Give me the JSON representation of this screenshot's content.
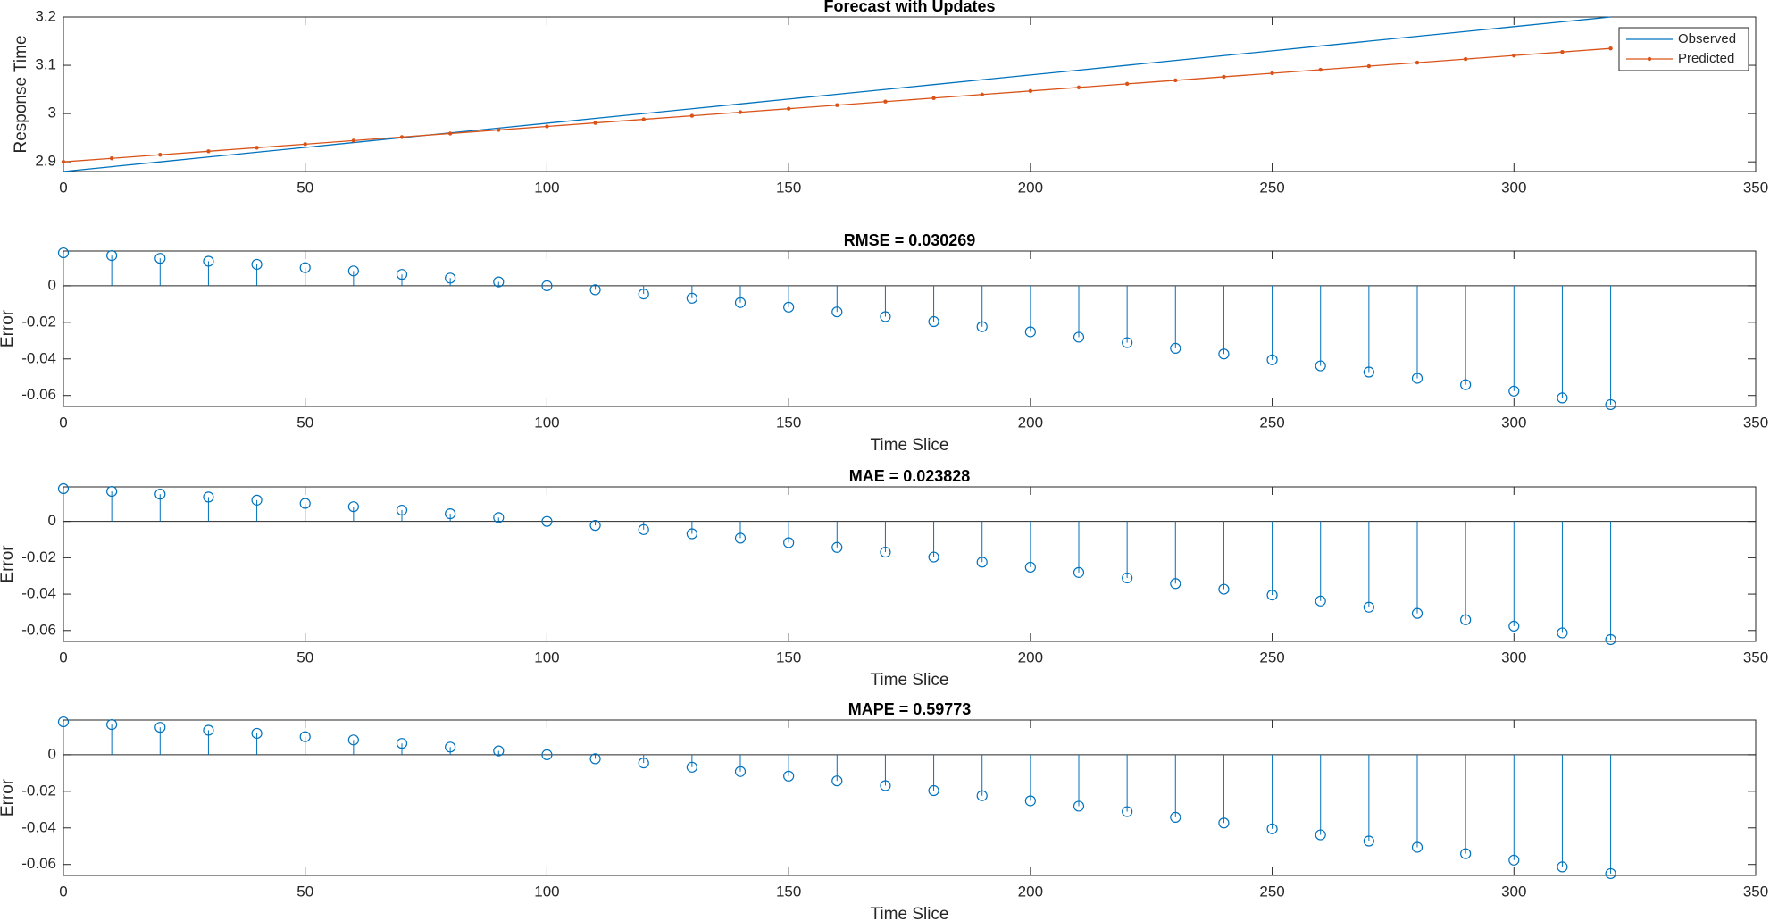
{
  "chart_data": [
    {
      "type": "line",
      "title": "Forecast with Updates",
      "ylabel": "Response Time",
      "x": [
        0,
        10,
        20,
        30,
        40,
        50,
        60,
        70,
        80,
        90,
        100,
        110,
        120,
        130,
        140,
        150,
        160,
        170,
        180,
        190,
        200,
        210,
        220,
        230,
        240,
        250,
        260,
        270,
        280,
        290,
        300,
        310,
        320
      ],
      "series": [
        {
          "name": "Observed",
          "color": "#0072bd",
          "values": [
            2.88,
            2.89,
            2.9,
            2.91,
            2.92,
            2.93,
            2.94,
            2.95,
            2.96,
            2.97,
            2.98,
            2.99,
            3.0,
            3.01,
            3.02,
            3.03,
            3.04,
            3.05,
            3.06,
            3.07,
            3.08,
            3.09,
            3.1,
            3.11,
            3.12,
            3.13,
            3.14,
            3.15,
            3.16,
            3.17,
            3.18,
            3.19,
            3.2
          ]
        },
        {
          "name": "Predicted",
          "color": "#d95319",
          "marker": "dot",
          "values": [
            2.9,
            2.9073,
            2.9147,
            2.922,
            2.9294,
            2.9367,
            2.944,
            2.9514,
            2.9587,
            2.9661,
            2.9734,
            2.9807,
            2.9881,
            2.9954,
            3.0028,
            3.0101,
            3.0174,
            3.0248,
            3.0321,
            3.0395,
            3.0468,
            3.0541,
            3.0615,
            3.0688,
            3.0762,
            3.0835,
            3.0908,
            3.0982,
            3.1055,
            3.1129,
            3.1202,
            3.1275,
            3.1349
          ]
        }
      ],
      "xlim": [
        0,
        350
      ],
      "xticks": [
        0,
        50,
        100,
        150,
        200,
        250,
        300,
        350
      ],
      "ylim": [
        2.88,
        3.2
      ],
      "yticks": [
        2.9,
        3,
        3.1,
        3.2
      ],
      "legend": "northeast"
    },
    {
      "type": "stem",
      "title": "RMSE = 0.030269",
      "ylabel": "Error",
      "xlabel": "Time Slice",
      "color": "#0072bd",
      "x": [
        0,
        10,
        20,
        30,
        40,
        50,
        60,
        70,
        80,
        90,
        100,
        110,
        120,
        130,
        140,
        150,
        160,
        170,
        180,
        190,
        200,
        210,
        220,
        230,
        240,
        250,
        260,
        270,
        280,
        290,
        300,
        310,
        320
      ],
      "values": [
        0.018,
        0.0165,
        0.015,
        0.0134,
        0.0117,
        0.0099,
        0.0081,
        0.0062,
        0.0042,
        0.0021,
        0,
        -0.0022,
        -0.0045,
        -0.0068,
        -0.0092,
        -0.0117,
        -0.0143,
        -0.0169,
        -0.0196,
        -0.0224,
        -0.0252,
        -0.0281,
        -0.0311,
        -0.0342,
        -0.0373,
        -0.0405,
        -0.0438,
        -0.0472,
        -0.0506,
        -0.0541,
        -0.0576,
        -0.0613,
        -0.065
      ],
      "xlim": [
        0,
        350
      ],
      "xticks": [
        0,
        50,
        100,
        150,
        200,
        250,
        300,
        350
      ],
      "ylim": [
        -0.066,
        0.019
      ],
      "yticks": [
        -0.06,
        -0.04,
        -0.02,
        0
      ]
    },
    {
      "type": "stem",
      "title": "MAE = 0.023828",
      "ylabel": "Error",
      "xlabel": "Time Slice",
      "color": "#0072bd",
      "x": [
        0,
        10,
        20,
        30,
        40,
        50,
        60,
        70,
        80,
        90,
        100,
        110,
        120,
        130,
        140,
        150,
        160,
        170,
        180,
        190,
        200,
        210,
        220,
        230,
        240,
        250,
        260,
        270,
        280,
        290,
        300,
        310,
        320
      ],
      "values": [
        0.018,
        0.0165,
        0.015,
        0.0134,
        0.0117,
        0.0099,
        0.0081,
        0.0062,
        0.0042,
        0.0021,
        0,
        -0.0022,
        -0.0045,
        -0.0068,
        -0.0092,
        -0.0117,
        -0.0143,
        -0.0169,
        -0.0196,
        -0.0224,
        -0.0252,
        -0.0281,
        -0.0311,
        -0.0342,
        -0.0373,
        -0.0405,
        -0.0438,
        -0.0472,
        -0.0506,
        -0.0541,
        -0.0576,
        -0.0613,
        -0.065
      ],
      "xlim": [
        0,
        350
      ],
      "xticks": [
        0,
        50,
        100,
        150,
        200,
        250,
        300,
        350
      ],
      "ylim": [
        -0.066,
        0.019
      ],
      "yticks": [
        -0.06,
        -0.04,
        -0.02,
        0
      ]
    },
    {
      "type": "stem",
      "title": "MAPE = 0.59773",
      "ylabel": "Error",
      "xlabel": "Time Slice",
      "color": "#0072bd",
      "x": [
        0,
        10,
        20,
        30,
        40,
        50,
        60,
        70,
        80,
        90,
        100,
        110,
        120,
        130,
        140,
        150,
        160,
        170,
        180,
        190,
        200,
        210,
        220,
        230,
        240,
        250,
        260,
        270,
        280,
        290,
        300,
        310,
        320
      ],
      "values": [
        0.018,
        0.0165,
        0.015,
        0.0134,
        0.0117,
        0.0099,
        0.0081,
        0.0062,
        0.0042,
        0.0021,
        0,
        -0.0022,
        -0.0045,
        -0.0068,
        -0.0092,
        -0.0117,
        -0.0143,
        -0.0169,
        -0.0196,
        -0.0224,
        -0.0252,
        -0.0281,
        -0.0311,
        -0.0342,
        -0.0373,
        -0.0405,
        -0.0438,
        -0.0472,
        -0.0506,
        -0.0541,
        -0.0576,
        -0.0613,
        -0.065
      ],
      "xlim": [
        0,
        350
      ],
      "xticks": [
        0,
        50,
        100,
        150,
        200,
        250,
        300,
        350
      ],
      "ylim": [
        -0.066,
        0.019
      ],
      "yticks": [
        -0.06,
        -0.04,
        -0.02,
        0
      ]
    }
  ]
}
